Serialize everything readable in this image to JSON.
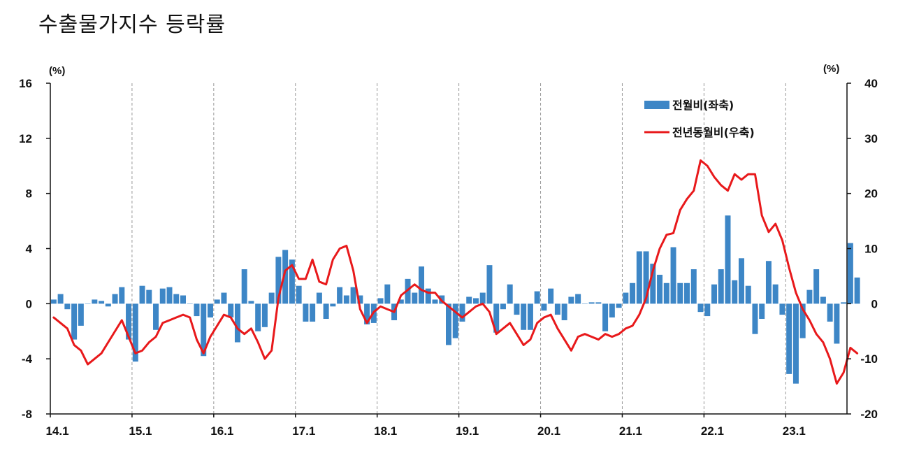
{
  "title": "수출물가지수 등락률",
  "chart_data": {
    "type": "bar+line",
    "title": "수출물가지수 등락률",
    "left_axis": {
      "unit": "(%)",
      "min": -8,
      "max": 16,
      "ticks": [
        -8,
        -4,
        0,
        4,
        8,
        12,
        16
      ]
    },
    "right_axis": {
      "unit": "(%)",
      "min": -20,
      "max": 40,
      "ticks": [
        -20,
        -10,
        0,
        10,
        20,
        30,
        40
      ]
    },
    "x_labels": [
      "14.1",
      "15.1",
      "16.1",
      "17.1",
      "18.1",
      "19.1",
      "20.1",
      "21.1",
      "22.1",
      "23.1"
    ],
    "months": 117,
    "colors": {
      "bar": "#3d86c6",
      "line": "#e8191b",
      "grid": "#999999"
    },
    "legend_position": "top-right",
    "series": [
      {
        "name": "전월비(좌축)",
        "type": "bar",
        "axis": "left",
        "values": [
          0.3,
          0.7,
          -0.4,
          -2.6,
          -1.6,
          0.0,
          0.3,
          0.2,
          -0.2,
          0.7,
          1.2,
          -2.6,
          -4.2,
          1.3,
          1.0,
          -1.9,
          1.1,
          1.2,
          0.7,
          0.6,
          0.0,
          -0.9,
          -3.8,
          -1.0,
          0.3,
          0.8,
          -1.0,
          -2.8,
          2.5,
          0.2,
          -2.0,
          -1.7,
          0.8,
          3.4,
          3.9,
          3.2,
          1.3,
          -1.3,
          -1.3,
          0.8,
          -1.1,
          -0.2,
          1.2,
          0.6,
          1.2,
          0.6,
          -1.5,
          -1.4,
          0.4,
          1.4,
          -1.2,
          0.3,
          1.8,
          0.8,
          2.7,
          1.1,
          0.3,
          0.6,
          -3.0,
          -2.5,
          -1.3,
          0.5,
          0.4,
          0.8,
          2.8,
          -2.1,
          -0.4,
          1.4,
          -0.8,
          -1.9,
          -1.9,
          0.9,
          -0.5,
          1.1,
          -0.8,
          -1.2,
          0.5,
          0.7,
          0.0,
          0.1,
          0.1,
          -2.0,
          -1.0,
          -0.3,
          0.8,
          1.5,
          3.8,
          3.8,
          2.9,
          2.1,
          1.5,
          4.1,
          1.5,
          1.5,
          2.5,
          -0.6,
          -0.9,
          1.4,
          2.5,
          6.4,
          1.7,
          3.3,
          1.3,
          -2.2,
          -1.1,
          3.1,
          1.4,
          -0.8,
          -5.1,
          -5.8,
          -2.5,
          1.0,
          2.5,
          0.5,
          -1.3,
          -2.9,
          0.1,
          4.4,
          1.9
        ]
      },
      {
        "name": "전년동월비(우축)",
        "type": "line",
        "axis": "right",
        "values": [
          -2.5,
          -3.5,
          -4.5,
          -7.5,
          -8.5,
          -11.0,
          -10.0,
          -9.0,
          -7.0,
          -5.0,
          -3.0,
          -6.0,
          -9.0,
          -8.5,
          -7.0,
          -6.0,
          -3.5,
          -3.0,
          -2.5,
          -2.0,
          -2.5,
          -6.5,
          -9.0,
          -6.0,
          -4.0,
          -2.0,
          -2.5,
          -4.5,
          -5.5,
          -4.5,
          -7.0,
          -10.0,
          -8.5,
          1.0,
          6.0,
          7.0,
          4.5,
          4.5,
          8.0,
          4.0,
          3.5,
          8.0,
          10.0,
          10.5,
          6.0,
          -1.0,
          -3.5,
          -1.5,
          -0.5,
          -1.0,
          -1.5,
          1.5,
          2.5,
          3.5,
          2.5,
          2.0,
          2.0,
          0.5,
          -0.5,
          -1.5,
          -2.5,
          -1.5,
          -0.5,
          0.0,
          -1.5,
          -5.5,
          -4.5,
          -3.5,
          -5.5,
          -7.5,
          -6.5,
          -3.5,
          -2.5,
          -2.0,
          -4.5,
          -6.5,
          -8.5,
          -6.0,
          -5.5,
          -6.0,
          -6.5,
          -5.5,
          -6.0,
          -5.5,
          -4.5,
          -4.0,
          -2.0,
          1.0,
          6.0,
          10.0,
          12.5,
          12.8,
          17.0,
          19.0,
          20.5,
          26.0,
          25.0,
          23.0,
          21.5,
          20.5,
          23.5,
          22.5,
          23.5,
          23.5,
          16.0,
          13.0,
          14.5,
          11.5,
          6.5,
          2.0,
          -1.0,
          -3.0,
          -5.5,
          -7.0,
          -10.0,
          -14.5,
          -12.5,
          -8.0,
          -9.0
        ]
      }
    ]
  }
}
